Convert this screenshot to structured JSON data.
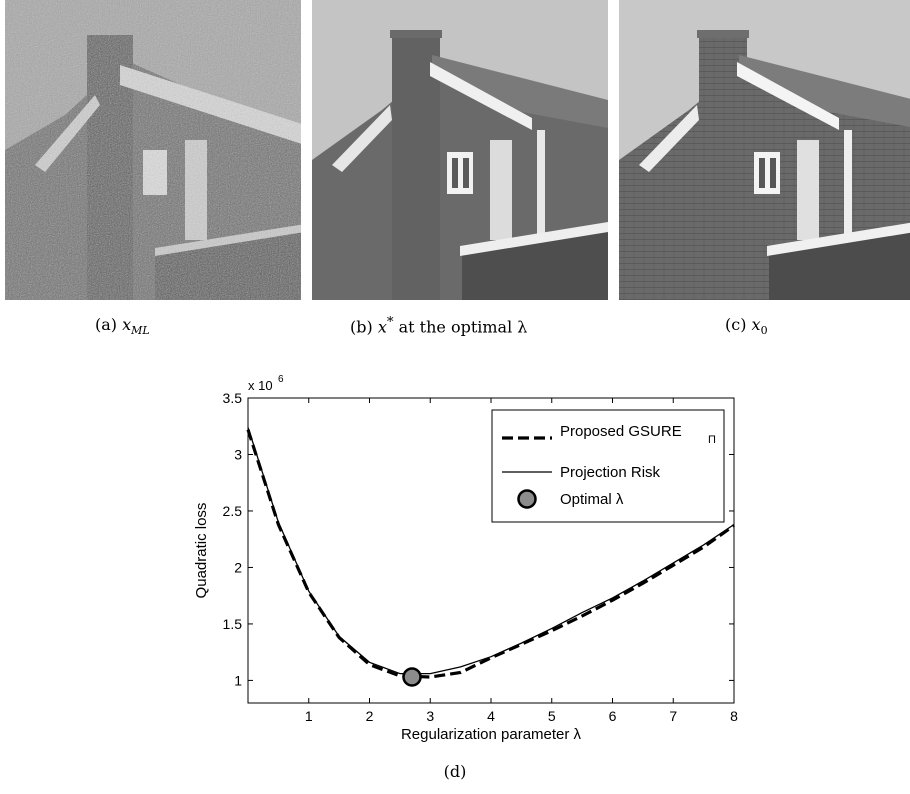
{
  "figure": {
    "panels": [
      {
        "id": "a",
        "label": "(a)",
        "math": "x",
        "sub": "ML",
        "tail": ""
      },
      {
        "id": "b",
        "label": "(b)",
        "math": "x",
        "sup": "*",
        "tail": " at the optimal λ"
      },
      {
        "id": "c",
        "label": "(c)",
        "math": "x",
        "sub": "0",
        "tail": ""
      }
    ],
    "caption_d": "(d)"
  },
  "chart_data": {
    "type": "line",
    "xlabel": "Regularization parameter λ",
    "ylabel": "Quadratic loss",
    "y_multiplier": "x 10",
    "y_multiplier_exp": "6",
    "xlim": [
      0,
      8
    ],
    "ylim": [
      0.8,
      3.5
    ],
    "xticks": [
      1,
      2,
      3,
      4,
      5,
      6,
      7,
      8
    ],
    "yticks": [
      1,
      1.5,
      2,
      2.5,
      3,
      3.5
    ],
    "legend_position": "top-right",
    "series": [
      {
        "name": "Proposed GSURE",
        "name_sub": "Π",
        "style": "dashed",
        "x": [
          0,
          0.5,
          1.0,
          1.5,
          2.0,
          2.5,
          3.0,
          3.5,
          4.0,
          4.5,
          5.0,
          5.5,
          6.0,
          6.5,
          7.0,
          7.5,
          8.0
        ],
        "y": [
          3.22,
          2.38,
          1.78,
          1.38,
          1.14,
          1.04,
          1.03,
          1.07,
          1.2,
          1.32,
          1.44,
          1.57,
          1.71,
          1.86,
          2.02,
          2.18,
          2.37
        ]
      },
      {
        "name": "Projection Risk",
        "style": "solid",
        "x": [
          0,
          0.5,
          1.0,
          1.5,
          2.0,
          2.5,
          3.0,
          3.5,
          4.0,
          4.5,
          5.0,
          5.5,
          6.0,
          6.5,
          7.0,
          7.5,
          8.0
        ],
        "y": [
          3.24,
          2.4,
          1.79,
          1.39,
          1.16,
          1.06,
          1.06,
          1.12,
          1.21,
          1.33,
          1.46,
          1.6,
          1.73,
          1.88,
          2.04,
          2.2,
          2.38
        ]
      }
    ],
    "optimal": {
      "name": "Optimal λ",
      "x": 2.7,
      "y": 1.03
    }
  }
}
